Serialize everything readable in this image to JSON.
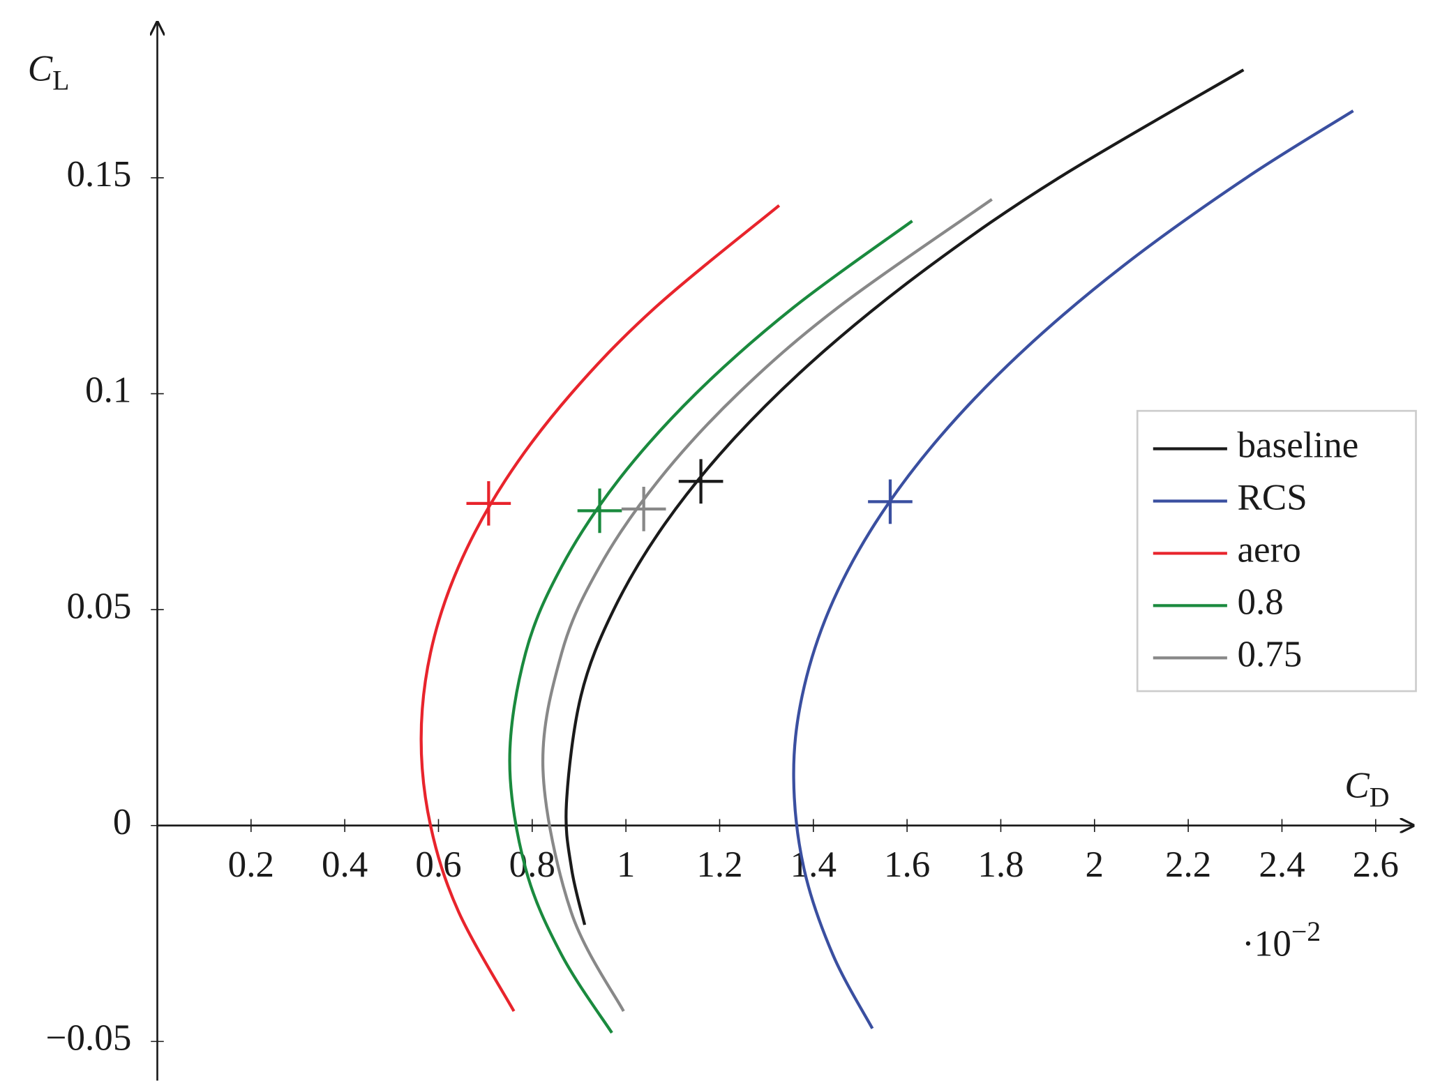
{
  "chart_data": {
    "type": "line",
    "xlabel": "C",
    "xlabel_sub": "D",
    "ylabel": "C",
    "ylabel_sub": "L",
    "x_multiplier": {
      "base": "·10",
      "exponent": "−2"
    },
    "xlim": [
      0,
      2.68
    ],
    "ylim": [
      -0.058,
      0.186
    ],
    "xticks": [
      0.2,
      0.4,
      0.6,
      0.8,
      1,
      1.2,
      1.4,
      1.6,
      1.8,
      2,
      2.2,
      2.4,
      2.6
    ],
    "yticks": [
      {
        "value": -0.05,
        "label": "−0.05"
      },
      0,
      0.05,
      0.1,
      0.15
    ],
    "legend": "right",
    "series": [
      {
        "name": "baseline",
        "color": "#1a1a1a",
        "x": [
          0.912,
          0.884,
          0.873,
          0.904,
          0.974,
          1.084,
          1.234,
          1.424,
          1.654,
          1.924,
          2.318
        ],
        "values": [
          -0.023,
          -0.01,
          0.005,
          0.03,
          0.05,
          0.07,
          0.09,
          0.11,
          0.13,
          0.15,
          0.175
        ],
        "marker": {
          "x": 1.16,
          "y": 0.0797
        }
      },
      {
        "name": "RCS",
        "color": "#3a4fa0",
        "x": [
          1.526,
          1.442,
          1.38,
          1.358,
          1.376,
          1.434,
          1.532,
          1.67,
          1.848,
          2.066,
          2.324,
          2.552
        ],
        "values": [
          -0.047,
          -0.03,
          -0.01,
          0.011,
          0.03,
          0.05,
          0.07,
          0.09,
          0.11,
          0.13,
          0.15,
          0.1655
        ],
        "marker": {
          "x": 1.564,
          "y": 0.075
        }
      },
      {
        "name": "aero",
        "color": "#e8242c",
        "x": [
          0.761,
          0.643,
          0.583,
          0.563,
          0.583,
          0.643,
          0.743,
          0.883,
          1.063,
          1.327
        ],
        "values": [
          -0.043,
          -0.02,
          0,
          0.02,
          0.04,
          0.06,
          0.08,
          0.1,
          0.12,
          0.1436
        ],
        "marker": {
          "x": 0.707,
          "y": 0.0746
        }
      },
      {
        "name": "0.8",
        "color": "#1a8a3e",
        "x": [
          0.97,
          0.863,
          0.786,
          0.752,
          0.786,
          0.863,
          0.984,
          1.149,
          1.358,
          1.611
        ],
        "values": [
          -0.048,
          -0.03,
          -0.01,
          0.015,
          0.04,
          0.06,
          0.08,
          0.1,
          0.12,
          0.14
        ],
        "marker": {
          "x": 0.944,
          "y": 0.0729
        }
      },
      {
        "name": "0.75",
        "color": "#888888",
        "x": [
          0.995,
          0.883,
          0.823,
          0.863,
          0.944,
          1.07,
          1.239,
          1.453,
          1.781
        ],
        "values": [
          -0.043,
          -0.02,
          0.013,
          0.04,
          0.06,
          0.08,
          0.1,
          0.12,
          0.145
        ],
        "marker": {
          "x": 1.038,
          "y": 0.0733
        }
      }
    ]
  }
}
